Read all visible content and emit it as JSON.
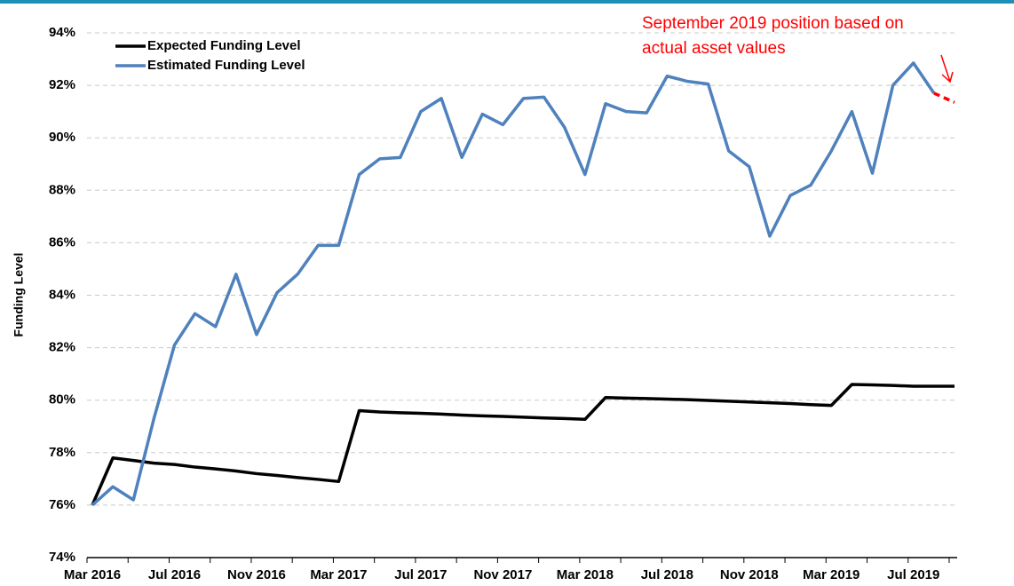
{
  "chart_data": {
    "type": "line",
    "y_label": "Funding Level",
    "annotation": [
      "September 2019 position based on",
      "actual asset values"
    ],
    "categories": [
      "Mar 2016",
      null,
      null,
      null,
      "Jul 2016",
      null,
      null,
      null,
      "Nov 2016",
      null,
      null,
      null,
      "Mar 2017",
      null,
      null,
      null,
      "Jul 2017",
      null,
      null,
      null,
      "Nov 2017",
      null,
      null,
      null,
      "Mar 2018",
      null,
      null,
      null,
      "Jul 2018",
      null,
      null,
      null,
      "Nov 2018",
      null,
      null,
      null,
      "Mar 2019",
      null,
      null,
      null,
      "Jul 2019",
      null,
      null
    ],
    "series": [
      {
        "name": "Expected Funding Level",
        "color": "#000000",
        "values": [
          76.0,
          77.8,
          77.7,
          77.6,
          77.55,
          77.45,
          77.38,
          77.3,
          77.2,
          77.13,
          77.05,
          76.98,
          76.9,
          79.6,
          79.55,
          79.52,
          79.5,
          79.47,
          79.43,
          79.4,
          79.38,
          79.35,
          79.32,
          79.3,
          79.27,
          80.1,
          80.08,
          80.06,
          80.04,
          80.02,
          79.99,
          79.96,
          79.93,
          79.9,
          79.87,
          79.83,
          79.8,
          80.6,
          80.58,
          80.56,
          80.53,
          80.53,
          80.53
        ]
      },
      {
        "name": "Estimated Funding Level",
        "color": "#4f81bd",
        "values": [
          76.0,
          76.7,
          76.2,
          79.3,
          82.1,
          83.3,
          82.8,
          84.8,
          82.5,
          84.1,
          84.8,
          85.9,
          85.9,
          88.6,
          89.2,
          89.25,
          91.0,
          91.5,
          89.25,
          90.9,
          90.5,
          91.5,
          91.55,
          90.4,
          88.6,
          91.3,
          91.0,
          90.95,
          92.35,
          92.15,
          92.05,
          89.5,
          88.9,
          86.25,
          87.8,
          88.2,
          89.5,
          91.0,
          88.65,
          92.0,
          92.85,
          91.7,
          null
        ]
      },
      {
        "color": "#ff0000",
        "dashed": true,
        "values": [
          null,
          null,
          null,
          null,
          null,
          null,
          null,
          null,
          null,
          null,
          null,
          null,
          null,
          null,
          null,
          null,
          null,
          null,
          null,
          null,
          null,
          null,
          null,
          null,
          null,
          null,
          null,
          null,
          null,
          null,
          null,
          null,
          null,
          null,
          null,
          null,
          null,
          null,
          null,
          null,
          null,
          91.7,
          91.35
        ]
      }
    ],
    "ylim": [
      74,
      94
    ],
    "yticks": [
      {
        "value": 74,
        "label": "74%"
      },
      {
        "value": 76,
        "label": "76%"
      },
      {
        "value": 78,
        "label": "78%"
      },
      {
        "value": 80,
        "label": "80%"
      },
      {
        "value": 82,
        "label": "82%"
      },
      {
        "value": 84,
        "label": "84%"
      },
      {
        "value": 86,
        "label": "86%"
      },
      {
        "value": 88,
        "label": "88%"
      },
      {
        "value": 90,
        "label": "90%"
      },
      {
        "value": 92,
        "label": "92%"
      },
      {
        "value": 94,
        "label": "94%"
      }
    ],
    "grid": true,
    "legend": "top-left"
  }
}
